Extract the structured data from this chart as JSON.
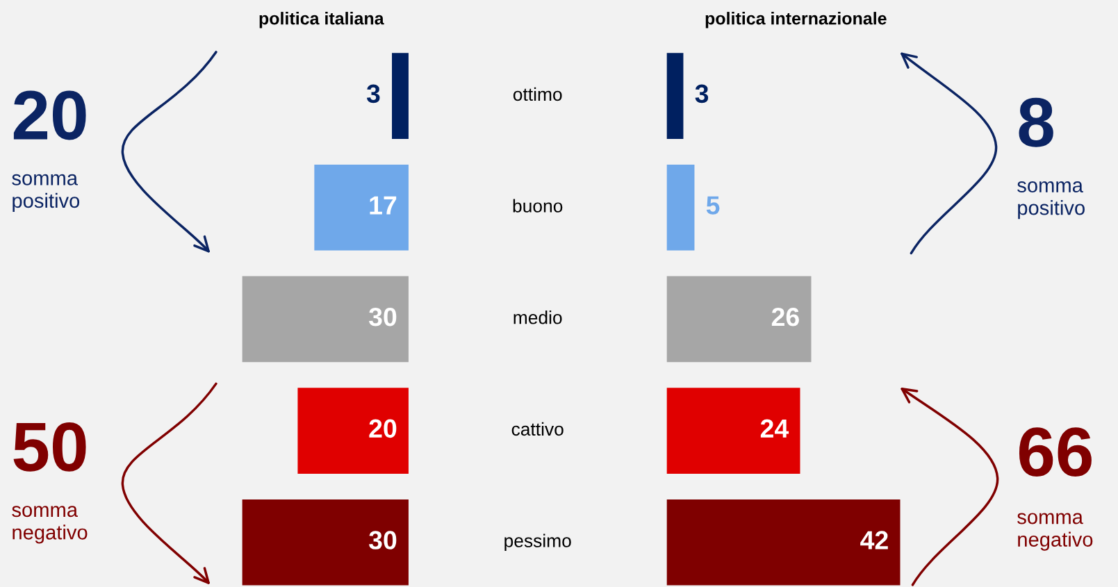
{
  "chart_data": [
    {
      "type": "bar",
      "orientation": "horizontal",
      "title": "politica italiana",
      "categories": [
        "ottimo",
        "buono",
        "medio",
        "cattivo",
        "pessimo"
      ],
      "values": [
        3,
        17,
        30,
        20,
        30
      ],
      "colors": [
        "#002060",
        "#6fa8ea",
        "#a6a6a6",
        "#e00000",
        "#7f0000"
      ],
      "data_labels": true,
      "annotations": [
        "20",
        "somma positivo",
        "50",
        "somma negativo"
      ]
    },
    {
      "type": "bar",
      "orientation": "horizontal",
      "title": "politica internazionale",
      "categories": [
        null,
        null,
        null,
        null,
        null
      ],
      "values": [
        3,
        5,
        26,
        24,
        42
      ],
      "colors": [
        "#002060",
        "#6fa8ea",
        "#a6a6a6",
        "#e00000",
        "#7f0000"
      ],
      "data_labels": true,
      "annotations": [
        "8",
        "somma positivo",
        "66",
        "somma negativo"
      ]
    }
  ]
}
